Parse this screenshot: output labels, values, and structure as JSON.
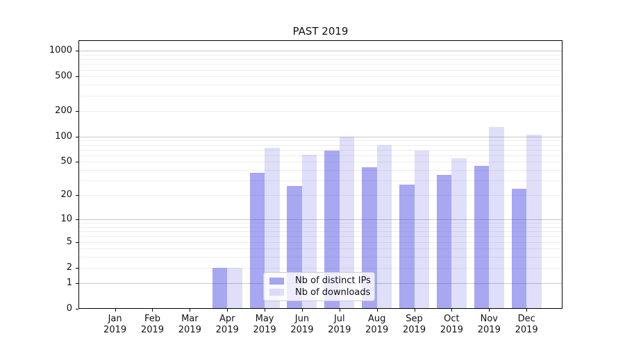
{
  "figure": {
    "title": "PAST 2019"
  },
  "legend": {
    "items": [
      {
        "label": "Nb of distinct IPs",
        "color": "rgba(55,55,225,0.44)"
      },
      {
        "label": "Nb of downloads",
        "color": "rgba(55,55,225,0.16)"
      }
    ]
  },
  "chart_data": {
    "type": "bar",
    "title": "PAST 2019",
    "categories": [
      "Jan 2019",
      "Feb 2019",
      "Mar 2019",
      "Apr 2019",
      "May 2019",
      "Jun 2019",
      "Jul 2019",
      "Aug 2019",
      "Sep 2019",
      "Oct 2019",
      "Nov 2019",
      "Dec 2019"
    ],
    "series": [
      {
        "name": "Nb of distinct IPs",
        "key": "distinct-ips",
        "color": "rgba(55,55,225,0.44)",
        "values": [
          0,
          0,
          0,
          2,
          37,
          26,
          68,
          43,
          27,
          35,
          45,
          24
        ]
      },
      {
        "name": "Nb of downloads",
        "key": "downloads",
        "color": "rgba(55,55,225,0.16)",
        "values": [
          0,
          0,
          0,
          2,
          74,
          61,
          100,
          79,
          68,
          55,
          129,
          105
        ]
      }
    ],
    "yscale": "log10(1+v)",
    "ylim": [
      0,
      1330
    ],
    "yticks": [
      1000,
      500,
      200,
      100,
      50,
      20,
      10,
      5,
      2,
      1,
      0
    ],
    "major_grid_values": [
      1,
      10,
      100,
      1000
    ],
    "minor_grid_values": [
      2,
      3,
      4,
      5,
      6,
      7,
      8,
      9,
      20,
      30,
      40,
      50,
      60,
      70,
      80,
      90,
      200,
      300,
      400,
      500,
      600,
      700,
      800,
      900
    ],
    "grid": true,
    "legend_position": "lower center",
    "colors": {
      "bar_dark": "rgba(55,55,225,0.44)",
      "bar_light": "rgba(55,55,225,0.16)",
      "major_grid": "#c8c8c8",
      "minor_grid": "#ededed",
      "axis": "#000000"
    }
  }
}
